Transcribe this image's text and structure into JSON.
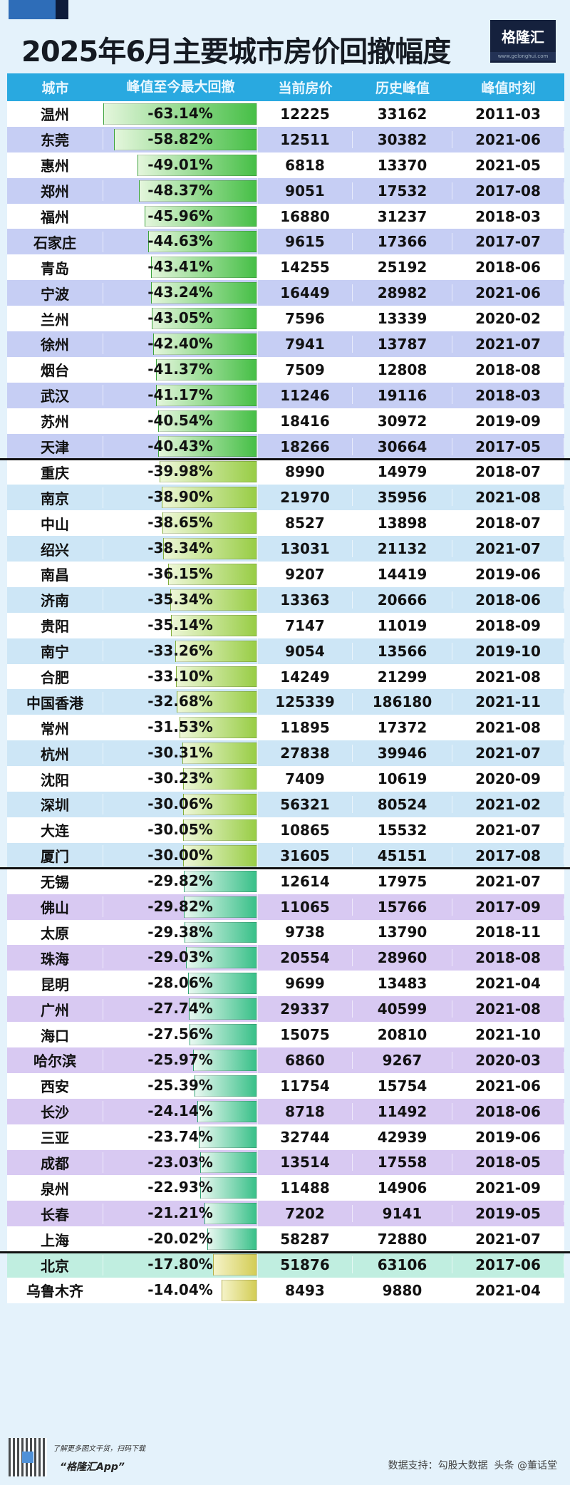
{
  "title": "2025年6月主要城市房价回撤幅度",
  "logo": {
    "name": "格隆汇",
    "url": "www.gelonghui.com"
  },
  "footer": {
    "tagline": "了解更多图文干货，扫码下载",
    "app": "“格隆汇App”",
    "source": "数据支持：勾股大数据",
    "watermark": "头条 @董话堂"
  },
  "colors": {
    "header": "#29a9e0",
    "groups": [
      {
        "alt": "#c6cef4",
        "bar_from": "#e4f6dc",
        "bar_to": "#46bf46"
      },
      {
        "alt": "#cde6f6",
        "bar_from": "#eef7d8",
        "bar_to": "#98cd45"
      },
      {
        "alt": "#d8c9f2",
        "bar_from": "#e9f8f1",
        "bar_to": "#38c088"
      },
      {
        "alt": "#c0eee0",
        "bar_from": "#f5f3c8",
        "bar_to": "#d3cd55"
      }
    ]
  },
  "chart_data": {
    "type": "table",
    "title": "2025年6月主要城市房价回撤幅度",
    "columns": [
      "城市",
      "峰值至今最大回撤",
      "当前房价",
      "历史峰值",
      "峰值时刻"
    ],
    "groups": [
      {
        "rows": [
          [
            "温州",
            "-63.14%",
            12225,
            33162,
            "2011-03"
          ],
          [
            "东莞",
            "-58.82%",
            12511,
            30382,
            "2021-06"
          ],
          [
            "惠州",
            "-49.01%",
            6818,
            13370,
            "2021-05"
          ],
          [
            "郑州",
            "-48.37%",
            9051,
            17532,
            "2017-08"
          ],
          [
            "福州",
            "-45.96%",
            16880,
            31237,
            "2018-03"
          ],
          [
            "石家庄",
            "-44.63%",
            9615,
            17366,
            "2017-07"
          ],
          [
            "青岛",
            "-43.41%",
            14255,
            25192,
            "2018-06"
          ],
          [
            "宁波",
            "-43.24%",
            16449,
            28982,
            "2021-06"
          ],
          [
            "兰州",
            "-43.05%",
            7596,
            13339,
            "2020-02"
          ],
          [
            "徐州",
            "-42.40%",
            7941,
            13787,
            "2021-07"
          ],
          [
            "烟台",
            "-41.37%",
            7509,
            12808,
            "2018-08"
          ],
          [
            "武汉",
            "-41.17%",
            11246,
            19116,
            "2018-03"
          ],
          [
            "苏州",
            "-40.54%",
            18416,
            30972,
            "2019-09"
          ],
          [
            "天津",
            "-40.43%",
            18266,
            30664,
            "2017-05"
          ]
        ],
        "first_alt": false
      },
      {
        "rows": [
          [
            "重庆",
            "-39.98%",
            8990,
            14979,
            "2018-07"
          ],
          [
            "南京",
            "-38.90%",
            21970,
            35956,
            "2021-08"
          ],
          [
            "中山",
            "-38.65%",
            8527,
            13898,
            "2018-07"
          ],
          [
            "绍兴",
            "-38.34%",
            13031,
            21132,
            "2021-07"
          ],
          [
            "南昌",
            "-36.15%",
            9207,
            14419,
            "2019-06"
          ],
          [
            "济南",
            "-35.34%",
            13363,
            20666,
            "2018-06"
          ],
          [
            "贵阳",
            "-35.14%",
            7147,
            11019,
            "2018-09"
          ],
          [
            "南宁",
            "-33.26%",
            9054,
            13566,
            "2019-10"
          ],
          [
            "合肥",
            "-33.10%",
            14249,
            21299,
            "2021-08"
          ],
          [
            "中国香港",
            "-32.68%",
            125339,
            186180,
            "2021-11"
          ],
          [
            "常州",
            "-31.53%",
            11895,
            17372,
            "2021-08"
          ],
          [
            "杭州",
            "-30.31%",
            27838,
            39946,
            "2021-07"
          ],
          [
            "沈阳",
            "-30.23%",
            7409,
            10619,
            "2020-09"
          ],
          [
            "深圳",
            "-30.06%",
            56321,
            80524,
            "2021-02"
          ],
          [
            "大连",
            "-30.05%",
            10865,
            15532,
            "2021-07"
          ],
          [
            "厦门",
            "-30.00%",
            31605,
            45151,
            "2017-08"
          ]
        ],
        "first_alt": false
      },
      {
        "rows": [
          [
            "无锡",
            "-29.82%",
            12614,
            17975,
            "2021-07"
          ],
          [
            "佛山",
            "-29.82%",
            11065,
            15766,
            "2017-09"
          ],
          [
            "太原",
            "-29.38%",
            9738,
            13790,
            "2018-11"
          ],
          [
            "珠海",
            "-29.03%",
            20554,
            28960,
            "2018-08"
          ],
          [
            "昆明",
            "-28.06%",
            9699,
            13483,
            "2021-04"
          ],
          [
            "广州",
            "-27.74%",
            29337,
            40599,
            "2021-08"
          ],
          [
            "海口",
            "-27.56%",
            15075,
            20810,
            "2021-10"
          ],
          [
            "哈尔滨",
            "-25.97%",
            6860,
            9267,
            "2020-03"
          ],
          [
            "西安",
            "-25.39%",
            11754,
            15754,
            "2021-06"
          ],
          [
            "长沙",
            "-24.14%",
            8718,
            11492,
            "2018-06"
          ],
          [
            "三亚",
            "-23.74%",
            32744,
            42939,
            "2019-06"
          ],
          [
            "成都",
            "-23.03%",
            13514,
            17558,
            "2018-05"
          ],
          [
            "泉州",
            "-22.93%",
            11488,
            14906,
            "2021-09"
          ],
          [
            "长春",
            "-21.21%",
            7202,
            9141,
            "2019-05"
          ],
          [
            "上海",
            "-20.02%",
            58287,
            72880,
            "2021-07"
          ]
        ],
        "first_alt": false
      },
      {
        "rows": [
          [
            "北京",
            "-17.80%",
            51876,
            63106,
            "2017-06"
          ],
          [
            "乌鲁木齐",
            "-14.04%",
            8493,
            9880,
            "2021-04"
          ]
        ],
        "first_alt": true
      }
    ]
  }
}
